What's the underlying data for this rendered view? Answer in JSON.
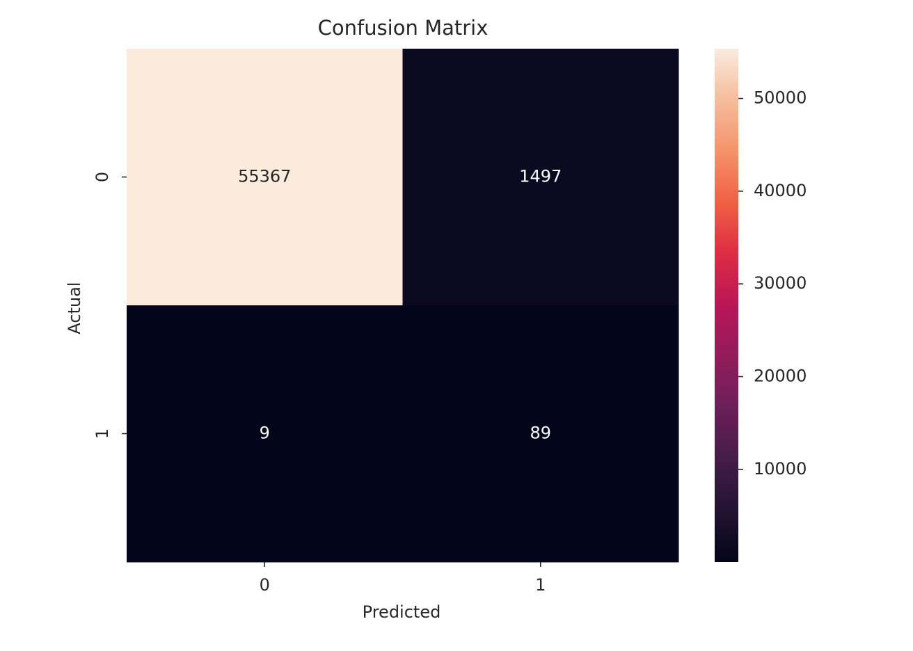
{
  "chart_data": {
    "type": "heatmap",
    "title": "Confusion Matrix",
    "x_label": "Predicted",
    "y_label": "Actual",
    "x_categories": [
      "0",
      "1"
    ],
    "y_categories": [
      "0",
      "1"
    ],
    "z": [
      [
        55367,
        1497
      ],
      [
        9,
        89
      ]
    ],
    "clim": [
      9,
      55367
    ],
    "cticks": [
      10000,
      20000,
      30000,
      40000,
      50000
    ],
    "colormap": [
      "#03051a",
      "#221331",
      "#451c47",
      "#6b1f59",
      "#921c5b",
      "#b91657",
      "#dd2c45",
      "#f06043",
      "#f5936a",
      "#f6bc9c",
      "#faebdd"
    ]
  }
}
